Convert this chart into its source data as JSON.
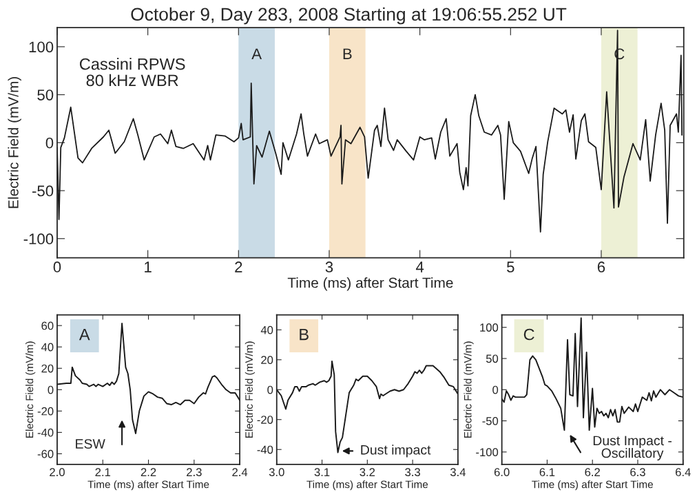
{
  "chart_data": [
    {
      "type": "line",
      "title": "October 9, Day 283, 2008 Starting at 19:06:55.252 UT",
      "xlabel": "Time (ms) after Start Time",
      "ylabel": "Electric Field (mV/m)",
      "xlim": [
        0,
        6.91
      ],
      "ylim": [
        -120,
        120
      ],
      "xticks": [
        0,
        1,
        2,
        3,
        4,
        5,
        6
      ],
      "yticks": [
        -100,
        -50,
        0,
        50,
        100
      ],
      "grid": false,
      "annotations": [
        "Cassini RPWS\n80 kHz WBR"
      ],
      "bands": [
        {
          "axis": "x",
          "from": 2.0,
          "to": 2.4,
          "label": "A",
          "color": "#c9dbe6"
        },
        {
          "axis": "x",
          "from": 3.0,
          "to": 3.4,
          "label": "B",
          "color": "#f8e4c8"
        },
        {
          "axis": "x",
          "from": 6.0,
          "to": 6.4,
          "label": "C",
          "color": "#edf0d5"
        }
      ],
      "series": [
        {
          "color": "#1a1a1a",
          "x": [
            0.0,
            0.02,
            0.04,
            0.08,
            0.15,
            0.23,
            0.28,
            0.38,
            0.51,
            0.57,
            0.64,
            0.74,
            0.84,
            0.89,
            0.96,
            1.07,
            1.14,
            1.22,
            1.26,
            1.31,
            1.39,
            1.5,
            1.62,
            1.66,
            1.69,
            1.75,
            1.85,
            1.95,
            2.0,
            2.03,
            2.05,
            2.13,
            2.14,
            2.17,
            2.2,
            2.26,
            2.34,
            2.41,
            2.47,
            2.49,
            2.55,
            2.64,
            2.69,
            2.72,
            2.76,
            2.85,
            2.89,
            2.98,
            3.02,
            3.12,
            3.13,
            3.14,
            3.18,
            3.24,
            3.34,
            3.39,
            3.43,
            3.5,
            3.53,
            3.57,
            3.61,
            3.65,
            3.71,
            3.75,
            3.85,
            3.93,
            4.0,
            4.05,
            4.13,
            4.17,
            4.23,
            4.29,
            4.33,
            4.41,
            4.44,
            4.48,
            4.51,
            4.53,
            4.56,
            4.61,
            4.65,
            4.71,
            4.79,
            4.86,
            4.89,
            4.93,
            4.98,
            5.03,
            5.11,
            5.2,
            5.24,
            5.28,
            5.33,
            5.36,
            5.41,
            5.48,
            5.57,
            5.61,
            5.65,
            5.69,
            5.72,
            5.78,
            5.82,
            5.86,
            5.94,
            6.0,
            6.06,
            6.14,
            6.18,
            6.19,
            6.25,
            6.35,
            6.43,
            6.49,
            6.54,
            6.6,
            6.66,
            6.7,
            6.73,
            6.76,
            6.83,
            6.85,
            6.88,
            6.89
          ],
          "values": [
            -5,
            -80,
            -5,
            5,
            37,
            -16,
            -21,
            -6,
            6,
            13,
            -11,
            1,
            25,
            8,
            -18,
            6,
            9,
            -1,
            13,
            -4,
            -6,
            -1,
            -18,
            -3,
            -18,
            8,
            7,
            1,
            5,
            20,
            3,
            6,
            62,
            -43,
            -3,
            -15,
            12,
            -11,
            -33,
            0,
            -18,
            9,
            30,
            9,
            -14,
            9,
            -1,
            3,
            -14,
            6,
            18,
            -43,
            3,
            -1,
            16,
            6,
            -37,
            13,
            18,
            -4,
            36,
            3,
            -8,
            3,
            -9,
            -18,
            6,
            3,
            5,
            -17,
            11,
            25,
            -14,
            -1,
            -31,
            -49,
            -26,
            -45,
            28,
            50,
            28,
            11,
            8,
            18,
            8,
            -59,
            22,
            0,
            -9,
            -32,
            -16,
            -4,
            -93,
            -33,
            1,
            36,
            30,
            34,
            11,
            29,
            -17,
            23,
            30,
            1,
            -5,
            -49,
            53,
            -68,
            117,
            -67,
            -36,
            -1,
            -18,
            24,
            -40,
            8,
            41,
            13,
            -84,
            18,
            30,
            11,
            91,
            8
          ]
        }
      ]
    },
    {
      "type": "line",
      "xlabel": "Time (ms) after Start Time",
      "ylabel": "Electric Field (mV/m)",
      "xlim": [
        2.0,
        2.4
      ],
      "ylim": [
        -70,
        70
      ],
      "xticks": [
        {
          "value": 2.0,
          "label": "2.0"
        },
        2.1,
        2.2,
        2.3,
        2.4
      ],
      "yticks": [
        -60,
        -40,
        -20,
        0,
        20,
        40,
        60
      ],
      "annotations": [
        "A",
        "ESW"
      ],
      "series": [
        {
          "color": "#1a1a1a",
          "x": [
            2.0,
            2.02,
            2.03,
            2.033,
            2.04,
            2.05,
            2.055,
            2.065,
            2.07,
            2.08,
            2.085,
            2.09,
            2.1,
            2.11,
            2.115,
            2.12,
            2.125,
            2.13,
            2.135,
            2.142,
            2.15,
            2.155,
            2.16,
            2.165,
            2.172,
            2.18,
            2.19,
            2.2,
            2.21,
            2.22,
            2.23,
            2.24,
            2.25,
            2.26,
            2.27,
            2.28,
            2.29,
            2.3,
            2.31,
            2.32,
            2.325,
            2.33,
            2.34,
            2.345,
            2.35,
            2.36,
            2.37,
            2.38,
            2.39,
            2.4
          ],
          "values": [
            5,
            6,
            6,
            21,
            13,
            9,
            6,
            5,
            3,
            5,
            3,
            5,
            3,
            6,
            4,
            7,
            5,
            8,
            15,
            62,
            21,
            15,
            0,
            -28,
            -41,
            -20,
            -6,
            -2,
            -4,
            -7,
            -8,
            -13,
            -14,
            -12,
            -14,
            -10,
            -10,
            -13,
            -7,
            -3,
            -4,
            2,
            12,
            13,
            11,
            5,
            0,
            -3,
            -3,
            -10
          ]
        }
      ]
    },
    {
      "type": "line",
      "xlabel": "Time (ms) after Start Time",
      "ylabel": "Electric Field (mV/m)",
      "xlim": [
        3.0,
        3.4
      ],
      "ylim": [
        -50,
        50
      ],
      "xticks": [
        {
          "value": 3.0,
          "label": "3.0"
        },
        3.1,
        3.2,
        3.3,
        3.4
      ],
      "yticks": [
        -40,
        -20,
        0,
        20,
        40
      ],
      "annotations": [
        "B",
        "Dust impact"
      ],
      "series": [
        {
          "color": "#1a1a1a",
          "x": [
            3.0,
            3.01,
            3.02,
            3.025,
            3.035,
            3.04,
            3.045,
            3.05,
            3.055,
            3.065,
            3.07,
            3.08,
            3.085,
            3.095,
            3.105,
            3.11,
            3.115,
            3.12,
            3.122,
            3.127,
            3.13,
            3.135,
            3.14,
            3.145,
            3.15,
            3.155,
            3.16,
            3.17,
            3.175,
            3.18,
            3.19,
            3.2,
            3.21,
            3.22,
            3.227,
            3.23,
            3.235,
            3.24,
            3.25,
            3.26,
            3.27,
            3.28,
            3.29,
            3.3,
            3.305,
            3.31,
            3.315,
            3.32,
            3.325,
            3.33,
            3.345,
            3.36,
            3.37,
            3.38,
            3.39,
            3.4
          ],
          "values": [
            0,
            -4,
            -13,
            -7,
            -2,
            2,
            2,
            -1,
            2,
            2,
            3,
            4,
            3,
            5,
            6,
            5,
            6,
            9,
            19,
            10,
            -28,
            -42,
            -35,
            -32,
            -22,
            -12,
            -2,
            3,
            7,
            6,
            9,
            9,
            6,
            2,
            -6,
            -3,
            -4,
            -3,
            -1,
            0,
            -1,
            0,
            4,
            9,
            12,
            11,
            13,
            11,
            13,
            16,
            16,
            12,
            8,
            3,
            2,
            -3
          ]
        }
      ]
    },
    {
      "type": "line",
      "xlabel": "Time (ms) after Start Time",
      "ylabel": "Electric Field (mV/m)",
      "xlim": [
        6.0,
        6.4
      ],
      "ylim": [
        -120,
        120
      ],
      "xticks": [
        {
          "value": 6.0,
          "label": "6.0"
        },
        6.1,
        6.2,
        6.3,
        6.4
      ],
      "yticks": [
        -100,
        -50,
        0,
        50,
        100
      ],
      "annotations": [
        "C",
        "Dust Impact -\nOscillatory"
      ],
      "series": [
        {
          "color": "#1a1a1a",
          "x": [
            6.0,
            6.005,
            6.01,
            6.015,
            6.02,
            6.025,
            6.03,
            6.05,
            6.055,
            6.062,
            6.068,
            6.075,
            6.09,
            6.095,
            6.1,
            6.11,
            6.12,
            6.13,
            6.138,
            6.145,
            6.15,
            6.157,
            6.162,
            6.167,
            6.175,
            6.18,
            6.187,
            6.193,
            6.2,
            6.205,
            6.21,
            6.215,
            6.22,
            6.225,
            6.23,
            6.235,
            6.24,
            6.245,
            6.25,
            6.255,
            6.26,
            6.265,
            6.27,
            6.28,
            6.29,
            6.295,
            6.3,
            6.31,
            6.32,
            6.325,
            6.33,
            6.335,
            6.34,
            6.35,
            6.36,
            6.37,
            6.38,
            6.39,
            6.4
          ],
          "values": [
            -15,
            -20,
            -2,
            -8,
            -17,
            -10,
            -12,
            -12,
            -8,
            48,
            54,
            48,
            20,
            8,
            6,
            -2,
            -15,
            -30,
            -65,
            80,
            -8,
            -10,
            90,
            -27,
            115,
            -45,
            60,
            -65,
            2,
            -60,
            -30,
            -38,
            -35,
            -42,
            -38,
            -45,
            -32,
            -42,
            -32,
            -52,
            -52,
            -27,
            -38,
            -28,
            -35,
            -23,
            -35,
            -12,
            -17,
            -5,
            -18,
            -2,
            -12,
            0,
            -8,
            0,
            -5,
            -10,
            -12
          ]
        }
      ]
    }
  ]
}
